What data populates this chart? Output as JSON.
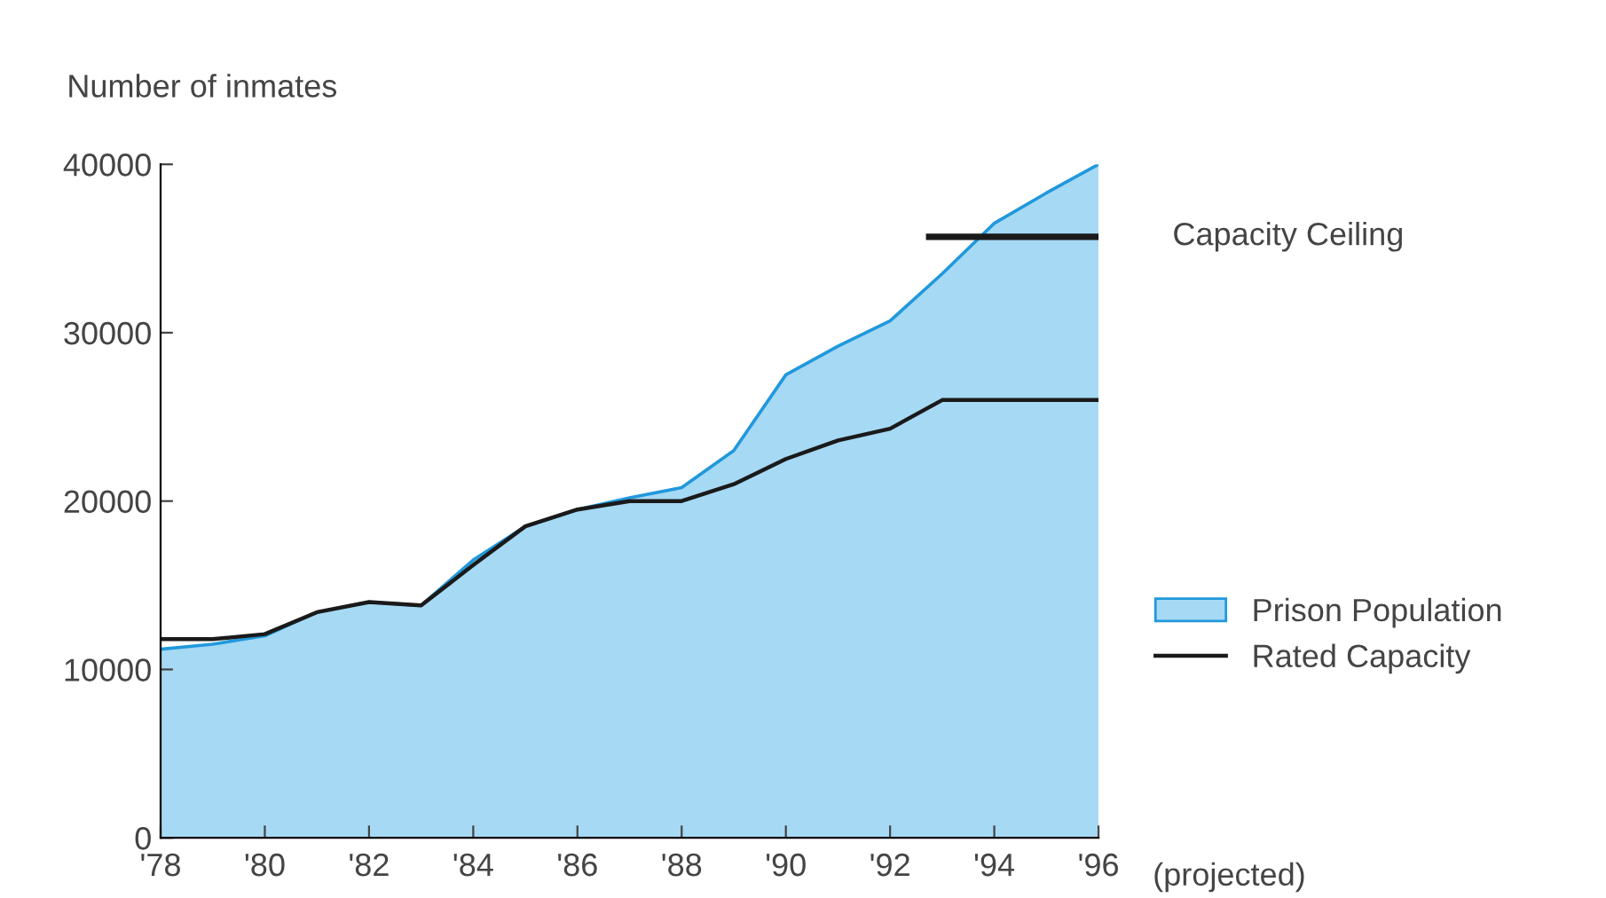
{
  "chart_data": {
    "type": "line",
    "ylabel": "Number of inmates",
    "x": [
      1978,
      1979,
      1980,
      1981,
      1982,
      1983,
      1984,
      1985,
      1986,
      1987,
      1988,
      1989,
      1990,
      1991,
      1992,
      1993,
      1994,
      1995,
      1996
    ],
    "series": [
      {
        "name": "Prison Population",
        "type": "area",
        "color": "#a6d9f4",
        "values": [
          11200,
          11500,
          12000,
          13400,
          14000,
          13800,
          16500,
          18500,
          19500,
          20200,
          20800,
          23000,
          27500,
          29200,
          30700,
          33500,
          36500,
          38300,
          40000
        ]
      },
      {
        "name": "Rated Capacity",
        "color": "#1a1a1a",
        "values": [
          11800,
          11800,
          12100,
          13400,
          14000,
          13800,
          16200,
          18500,
          19500,
          20000,
          20000,
          21000,
          22500,
          23600,
          24300,
          26000,
          26000,
          26000,
          26000
        ]
      },
      {
        "name": "Capacity Ceiling",
        "color": "#1a1a1a",
        "x": [
          1992.75,
          1996
        ],
        "values": [
          35700,
          35700
        ]
      }
    ],
    "xlim": [
      1978,
      1996
    ],
    "ylim": [
      0,
      40000
    ],
    "xticks": [
      {
        "value": 1978,
        "label": "'78"
      },
      {
        "value": 1980,
        "label": "'80"
      },
      {
        "value": 1982,
        "label": "'82"
      },
      {
        "value": 1984,
        "label": "'84"
      },
      {
        "value": 1986,
        "label": "'86"
      },
      {
        "value": 1988,
        "label": "'88"
      },
      {
        "value": 1990,
        "label": "'90"
      },
      {
        "value": 1992,
        "label": "'92"
      },
      {
        "value": 1994,
        "label": "'94"
      },
      {
        "value": 1996,
        "label": "'96"
      }
    ],
    "yticks": [
      0,
      10000,
      20000,
      30000,
      40000
    ],
    "annotations": [
      "(projected)"
    ],
    "legend": "right",
    "grid": false
  }
}
